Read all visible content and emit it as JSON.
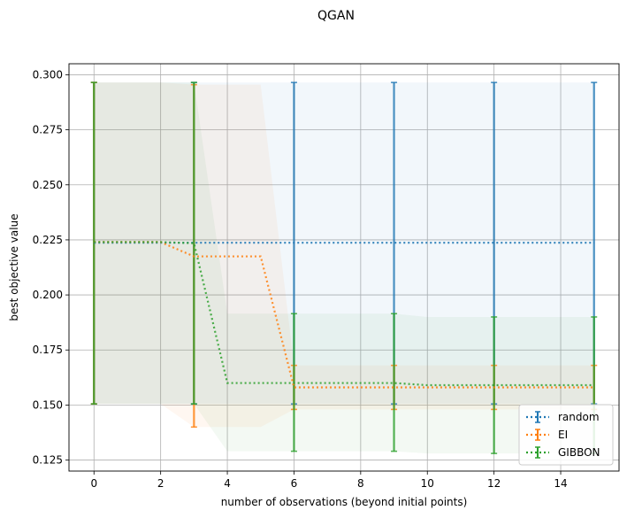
{
  "chart_data": {
    "type": "line",
    "title": "QGAN",
    "xlabel": "number of observations (beyond initial points)",
    "ylabel": "best objective value",
    "xlim": [
      -0.75,
      15.75
    ],
    "ylim": [
      0.12,
      0.305
    ],
    "xticks": [
      0,
      2,
      4,
      6,
      8,
      10,
      12,
      14
    ],
    "yticks": [
      0.125,
      0.15,
      0.175,
      0.2,
      0.225,
      0.25,
      0.275,
      0.3
    ],
    "ytick_labels": [
      "0.125",
      "0.150",
      "0.175",
      "0.200",
      "0.225",
      "0.250",
      "0.275",
      "0.300"
    ],
    "grid": true,
    "legend_position": "lower-right",
    "x": [
      0,
      1,
      2,
      3,
      4,
      5,
      6,
      7,
      8,
      9,
      10,
      11,
      12,
      13,
      14,
      15
    ],
    "series": [
      {
        "name": "random",
        "color": "#1f77b4",
        "mean": [
          0.2237,
          0.2237,
          0.2237,
          0.2237,
          0.2237,
          0.2237,
          0.2237,
          0.2237,
          0.2237,
          0.2237,
          0.2237,
          0.2237,
          0.2237,
          0.2237,
          0.2237,
          0.2237
        ],
        "band_upper": [
          0.2965,
          0.2965,
          0.2965,
          0.2965,
          0.2965,
          0.2965,
          0.2965,
          0.2965,
          0.2965,
          0.2965,
          0.2965,
          0.2965,
          0.2965,
          0.2965,
          0.2965,
          0.2965
        ],
        "band_lower": [
          0.1505,
          0.1505,
          0.1505,
          0.1505,
          0.1505,
          0.1505,
          0.1505,
          0.1505,
          0.1505,
          0.1505,
          0.1505,
          0.1505,
          0.1505,
          0.1505,
          0.1505,
          0.1505
        ],
        "errorbar_x": [
          0,
          3,
          6,
          9,
          12,
          15
        ],
        "err_upper": [
          0.2965,
          0.2965,
          0.2965,
          0.2965,
          0.2965,
          0.2965
        ],
        "err_lower": [
          0.1505,
          0.1505,
          0.1505,
          0.1505,
          0.1505,
          0.1505
        ]
      },
      {
        "name": "EI",
        "color": "#ff7f0e",
        "mean": [
          0.224,
          0.224,
          0.224,
          0.2175,
          0.2175,
          0.2175,
          0.158,
          0.158,
          0.158,
          0.158,
          0.158,
          0.158,
          0.158,
          0.158,
          0.158,
          0.158
        ],
        "band_upper": [
          0.2965,
          0.2965,
          0.2965,
          0.2955,
          0.2955,
          0.2955,
          0.168,
          0.168,
          0.168,
          0.168,
          0.168,
          0.168,
          0.168,
          0.168,
          0.168,
          0.168
        ],
        "band_lower": [
          0.1505,
          0.1505,
          0.1505,
          0.14,
          0.14,
          0.14,
          0.148,
          0.148,
          0.148,
          0.148,
          0.148,
          0.148,
          0.148,
          0.148,
          0.148,
          0.148
        ],
        "errorbar_x": [
          0,
          3,
          6,
          9,
          12,
          15
        ],
        "err_upper": [
          0.2965,
          0.2955,
          0.168,
          0.168,
          0.168,
          0.168
        ],
        "err_lower": [
          0.1505,
          0.14,
          0.148,
          0.148,
          0.148,
          0.148
        ]
      },
      {
        "name": "GIBBON",
        "color": "#2ca02c",
        "mean": [
          0.224,
          0.224,
          0.224,
          0.2235,
          0.16,
          0.16,
          0.16,
          0.16,
          0.16,
          0.16,
          0.159,
          0.159,
          0.159,
          0.159,
          0.159,
          0.159
        ],
        "band_upper": [
          0.2965,
          0.2965,
          0.2965,
          0.2965,
          0.1915,
          0.1915,
          0.1915,
          0.1915,
          0.1915,
          0.1915,
          0.19,
          0.19,
          0.19,
          0.19,
          0.19,
          0.19
        ],
        "band_lower": [
          0.1505,
          0.1505,
          0.1505,
          0.1505,
          0.129,
          0.129,
          0.129,
          0.129,
          0.129,
          0.129,
          0.128,
          0.128,
          0.128,
          0.128,
          0.128,
          0.128
        ],
        "errorbar_x": [
          0,
          3,
          6,
          9,
          12,
          15
        ],
        "err_upper": [
          0.2965,
          0.2965,
          0.1915,
          0.1915,
          0.19,
          0.19
        ],
        "err_lower": [
          0.1505,
          0.1505,
          0.129,
          0.129,
          0.128,
          0.128
        ]
      }
    ]
  }
}
